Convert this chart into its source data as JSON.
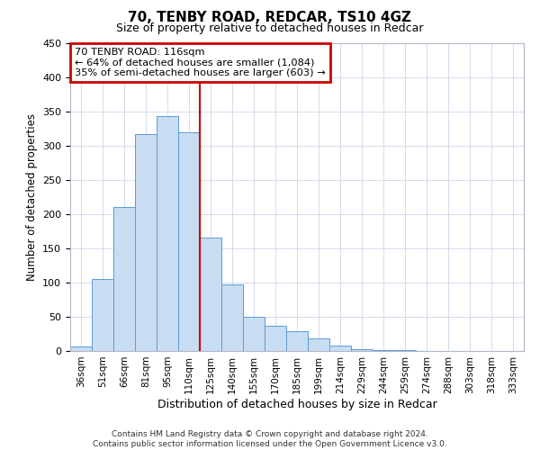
{
  "title": "70, TENBY ROAD, REDCAR, TS10 4GZ",
  "subtitle": "Size of property relative to detached houses in Redcar",
  "xlabel": "Distribution of detached houses by size in Redcar",
  "ylabel": "Number of detached properties",
  "bar_labels": [
    "36sqm",
    "51sqm",
    "66sqm",
    "81sqm",
    "95sqm",
    "110sqm",
    "125sqm",
    "140sqm",
    "155sqm",
    "170sqm",
    "185sqm",
    "199sqm",
    "214sqm",
    "229sqm",
    "244sqm",
    "259sqm",
    "274sqm",
    "288sqm",
    "303sqm",
    "318sqm",
    "333sqm"
  ],
  "bar_values": [
    7,
    105,
    210,
    316,
    343,
    319,
    165,
    97,
    50,
    37,
    29,
    18,
    8,
    2,
    1,
    1,
    0,
    0,
    0,
    0,
    0
  ],
  "bar_color": "#c9ddf2",
  "bar_edge_color": "#5b9bd5",
  "vline_x": 5.5,
  "vline_color": "#cc0000",
  "annotation_title": "70 TENBY ROAD: 116sqm",
  "annotation_line1": "← 64% of detached houses are smaller (1,084)",
  "annotation_line2": "35% of semi-detached houses are larger (603) →",
  "annotation_box_color": "#cc0000",
  "ylim": [
    0,
    450
  ],
  "yticks": [
    0,
    50,
    100,
    150,
    200,
    250,
    300,
    350,
    400,
    450
  ],
  "footer_line1": "Contains HM Land Registry data © Crown copyright and database right 2024.",
  "footer_line2": "Contains public sector information licensed under the Open Government Licence v3.0.",
  "background_color": "#ffffff",
  "grid_color": "#ccd6e8"
}
